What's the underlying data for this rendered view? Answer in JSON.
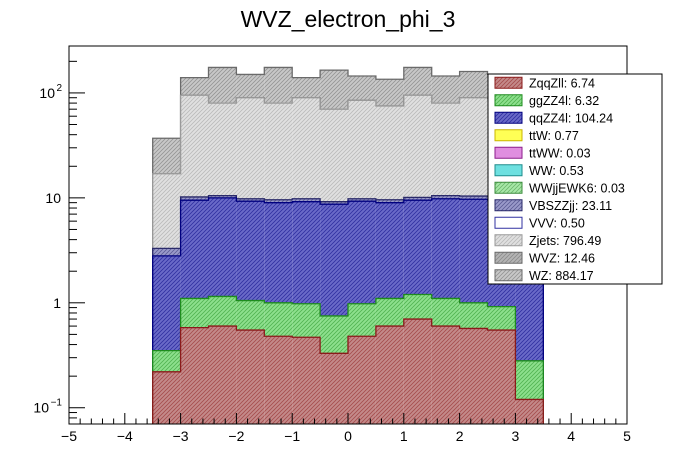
{
  "chart_data": {
    "type": "bar",
    "title": "WVZ_electron_phi_3",
    "xlabel": "",
    "ylabel": "",
    "xlim": [
      -5,
      5
    ],
    "ylim": [
      0.07,
      280
    ],
    "ylog": true,
    "bin_edges": [
      -3.5,
      -3.0,
      -2.5,
      -2.0,
      -1.5,
      -1.0,
      -0.5,
      0.0,
      0.5,
      1.0,
      1.5,
      2.0,
      2.5,
      3.0,
      3.5
    ],
    "x_ticks": [
      {
        "v": -5,
        "label": "−5"
      },
      {
        "v": -4,
        "label": "−4"
      },
      {
        "v": -3,
        "label": "−3"
      },
      {
        "v": -2,
        "label": "−2"
      },
      {
        "v": -1,
        "label": "−1"
      },
      {
        "v": 0,
        "label": "0"
      },
      {
        "v": 1,
        "label": "1"
      },
      {
        "v": 2,
        "label": "2"
      },
      {
        "v": 3,
        "label": "3"
      },
      {
        "v": 4,
        "label": "4"
      },
      {
        "v": 5,
        "label": "5"
      }
    ],
    "y_ticks": [
      {
        "v": 0.1,
        "base": "10",
        "exp": "−1"
      },
      {
        "v": 1,
        "base": "1",
        "exp": ""
      },
      {
        "v": 10,
        "base": "10",
        "exp": ""
      },
      {
        "v": 100,
        "base": "10",
        "exp": "2"
      }
    ],
    "legend_position": "top-right",
    "stack_bottom": 0.07,
    "series": [
      {
        "name": "ZqqZll: 6.74",
        "fill": "#c48a8a",
        "stroke": "#8b1a1a",
        "pattern": "hatch",
        "cumulative": [
          0.22,
          0.58,
          0.6,
          0.55,
          0.48,
          0.47,
          0.33,
          0.48,
          0.6,
          0.7,
          0.6,
          0.57,
          0.55,
          0.12
        ]
      },
      {
        "name": "ggZZ4l: 6.32",
        "fill": "#8de08d",
        "stroke": "#1e8c1e",
        "pattern": "hatch",
        "cumulative": [
          0.35,
          1.1,
          1.15,
          1.05,
          1.0,
          0.98,
          0.75,
          0.98,
          1.1,
          1.2,
          1.1,
          1.0,
          0.92,
          0.28
        ]
      },
      {
        "name": "qqZZ4l: 104.24",
        "fill": "#6a6ac8",
        "stroke": "#00007f",
        "pattern": "hatch",
        "cumulative": [
          2.8,
          9.5,
          10.0,
          9.3,
          9.0,
          9.2,
          8.7,
          9.3,
          9.0,
          9.5,
          9.8,
          9.7,
          9.6,
          2.5
        ]
      },
      {
        "name": "ttW: 0.77",
        "fill": "#ffff55",
        "stroke": "#c8b400",
        "pattern": "solid",
        "cumulative": null
      },
      {
        "name": "ttWW: 0.03",
        "fill": "#e08ee0",
        "stroke": "#8c1e8c",
        "pattern": "solid",
        "cumulative": null
      },
      {
        "name": "WW: 0.53",
        "fill": "#6ee0e0",
        "stroke": "#1e8c8c",
        "pattern": "solid",
        "cumulative": null
      },
      {
        "name": "WWjjEWK6: 0.03",
        "fill": "#a8e8a8",
        "stroke": "#3c8c3c",
        "pattern": "hatch",
        "cumulative": null
      },
      {
        "name": "VBSZZjj: 23.11",
        "fill": "#9a9aca",
        "stroke": "#2a2a6a",
        "pattern": "hatch",
        "cumulative": [
          3.3,
          10.2,
          10.5,
          9.8,
          9.6,
          9.8,
          9.2,
          9.8,
          9.6,
          10.1,
          10.5,
          10.4,
          10.3,
          2.8
        ]
      },
      {
        "name": "VVV: 0.50",
        "fill": "#ffffff",
        "stroke": "#3030a0",
        "pattern": "solid",
        "cumulative": null
      },
      {
        "name": "Zjets: 796.49",
        "fill": "#e0e0e0",
        "stroke": "#9a9a9a",
        "pattern": "hatch",
        "cumulative": [
          17,
          95,
          80,
          90,
          80,
          90,
          70,
          85,
          75,
          95,
          80,
          90,
          88,
          20
        ]
      },
      {
        "name": "WVZ: 12.46",
        "fill": "#b4b4b4",
        "stroke": "#6a6a6a",
        "pattern": "hatch",
        "cumulative": [
          17,
          95,
          80,
          90,
          80,
          90,
          70,
          85,
          75,
          95,
          80,
          90,
          88,
          20
        ]
      },
      {
        "name": "WZ: 884.17",
        "fill": "#c8c8c8",
        "stroke": "#6a6a6a",
        "pattern": "hatch",
        "cumulative": [
          37,
          140,
          175,
          150,
          175,
          140,
          165,
          145,
          135,
          175,
          145,
          160,
          150,
          40
        ]
      }
    ]
  }
}
